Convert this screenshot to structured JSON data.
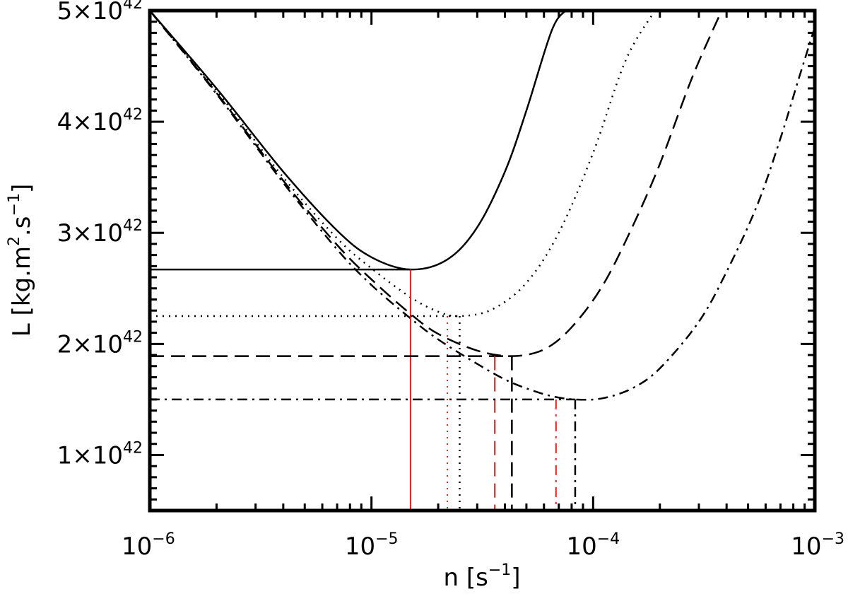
{
  "chart_data": {
    "type": "line",
    "title": "",
    "xlabel": {
      "base": "n  [s",
      "sup": "−1",
      "tail": "]"
    },
    "ylabel": {
      "base": "L  [kg.m",
      "sup1": "2",
      "mid": ".s",
      "sup2": "−1",
      "tail": "]"
    },
    "x_scale": "log",
    "xlim": [
      1e-06,
      0.001
    ],
    "ylim": [
      5e+41,
      5e+42
    ],
    "grid": false,
    "x_ticks": [
      {
        "value": 1e-06,
        "base": "10",
        "exp": "−6"
      },
      {
        "value": 1e-05,
        "base": "10",
        "exp": "−5"
      },
      {
        "value": 0.0001,
        "base": "10",
        "exp": "−4"
      },
      {
        "value": 0.001,
        "base": "10",
        "exp": "−3"
      }
    ],
    "y_ticks": [
      {
        "value": 1e+42,
        "base": "1×10",
        "exp": "42"
      },
      {
        "value": 2e+42,
        "base": "2×10",
        "exp": "42"
      },
      {
        "value": 3e+42,
        "base": "3×10",
        "exp": "42"
      },
      {
        "value": 4e+42,
        "base": "4×10",
        "exp": "42"
      },
      {
        "value": 5e+42,
        "base": "5×10",
        "exp": "42"
      }
    ],
    "series": [
      {
        "style": "solid",
        "n_min": 1.5e-05,
        "L_min": 2.67e+42,
        "n": [
          1e-06,
          2e-06,
          4e-06,
          7e-06,
          1e-05,
          1.5e-05,
          2.2e-05,
          3e-05,
          4e-05,
          5e-05,
          6.5e-05,
          7.5e-05
        ],
        "L": [
          5e+42,
          4.3e+42,
          3.55e+42,
          3.02e+42,
          2.78e+42,
          2.67e+42,
          2.76e+42,
          3.05e+42,
          3.55e+42,
          4.1e+42,
          4.82e+42,
          5e+42
        ],
        "n_red": 1.5e-05
      },
      {
        "style": "dotted",
        "n_min": 2.5e-05,
        "L_min": 2.25e+42,
        "n": [
          1e-06,
          2e-06,
          4e-06,
          7e-06,
          1e-05,
          1.5e-05,
          2e-05,
          2.5e-05,
          3.5e-05,
          5e-05,
          7e-05,
          0.0001,
          0.00014,
          0.00019
        ],
        "L": [
          5e+42,
          4.28e+42,
          3.5e+42,
          2.95e+42,
          2.68e+42,
          2.42e+42,
          2.29e+42,
          2.25e+42,
          2.31e+42,
          2.55e+42,
          3e+42,
          3.72e+42,
          4.55e+42,
          5e+42
        ],
        "n_red": 2.2e-05
      },
      {
        "style": "dashed",
        "n_min": 4.3e-05,
        "L_min": 1.89e+42,
        "n": [
          1e-06,
          2e-06,
          4e-06,
          7e-06,
          1e-05,
          1.5e-05,
          2e-05,
          3e-05,
          4.3e-05,
          6e-05,
          8e-05,
          0.00011,
          0.00015,
          0.0002,
          0.00028,
          0.00038
        ],
        "L": [
          5e+42,
          4.26e+42,
          3.47e+42,
          2.89e+42,
          2.58e+42,
          2.27e+42,
          2.09e+42,
          1.94e+42,
          1.89e+42,
          1.95e+42,
          2.15e+42,
          2.52e+42,
          3.05e+42,
          3.62e+42,
          4.4e+42,
          5e+42
        ],
        "n_red": 3.6e-05
      },
      {
        "style": "dashdot",
        "n_min": 8.3e-05,
        "L_min": 1.5e+42,
        "n": [
          1e-06,
          2e-06,
          4e-06,
          7e-06,
          1e-05,
          1.5e-05,
          2e-05,
          3e-05,
          4e-05,
          5e-05,
          6.5e-05,
          8.3e-05,
          0.00011,
          0.00015,
          0.0002,
          0.0003,
          0.0004,
          0.00055,
          0.0007,
          0.00085,
          0.001
        ],
        "L": [
          5e+42,
          4.25e+42,
          3.45e+42,
          2.85e+42,
          2.53e+42,
          2.23e+42,
          2.04e+42,
          1.82e+42,
          1.68e+42,
          1.6e+42,
          1.53e+42,
          1.5e+42,
          1.51e+42,
          1.6e+42,
          1.78e+42,
          2.2e+42,
          2.65e+42,
          3.25e+42,
          3.85e+42,
          4.4e+42,
          4.85e+42
        ],
        "n_red": 6.8e-05
      }
    ],
    "colors": {
      "curve": "#000000",
      "marker_line": "#e0201c"
    }
  }
}
